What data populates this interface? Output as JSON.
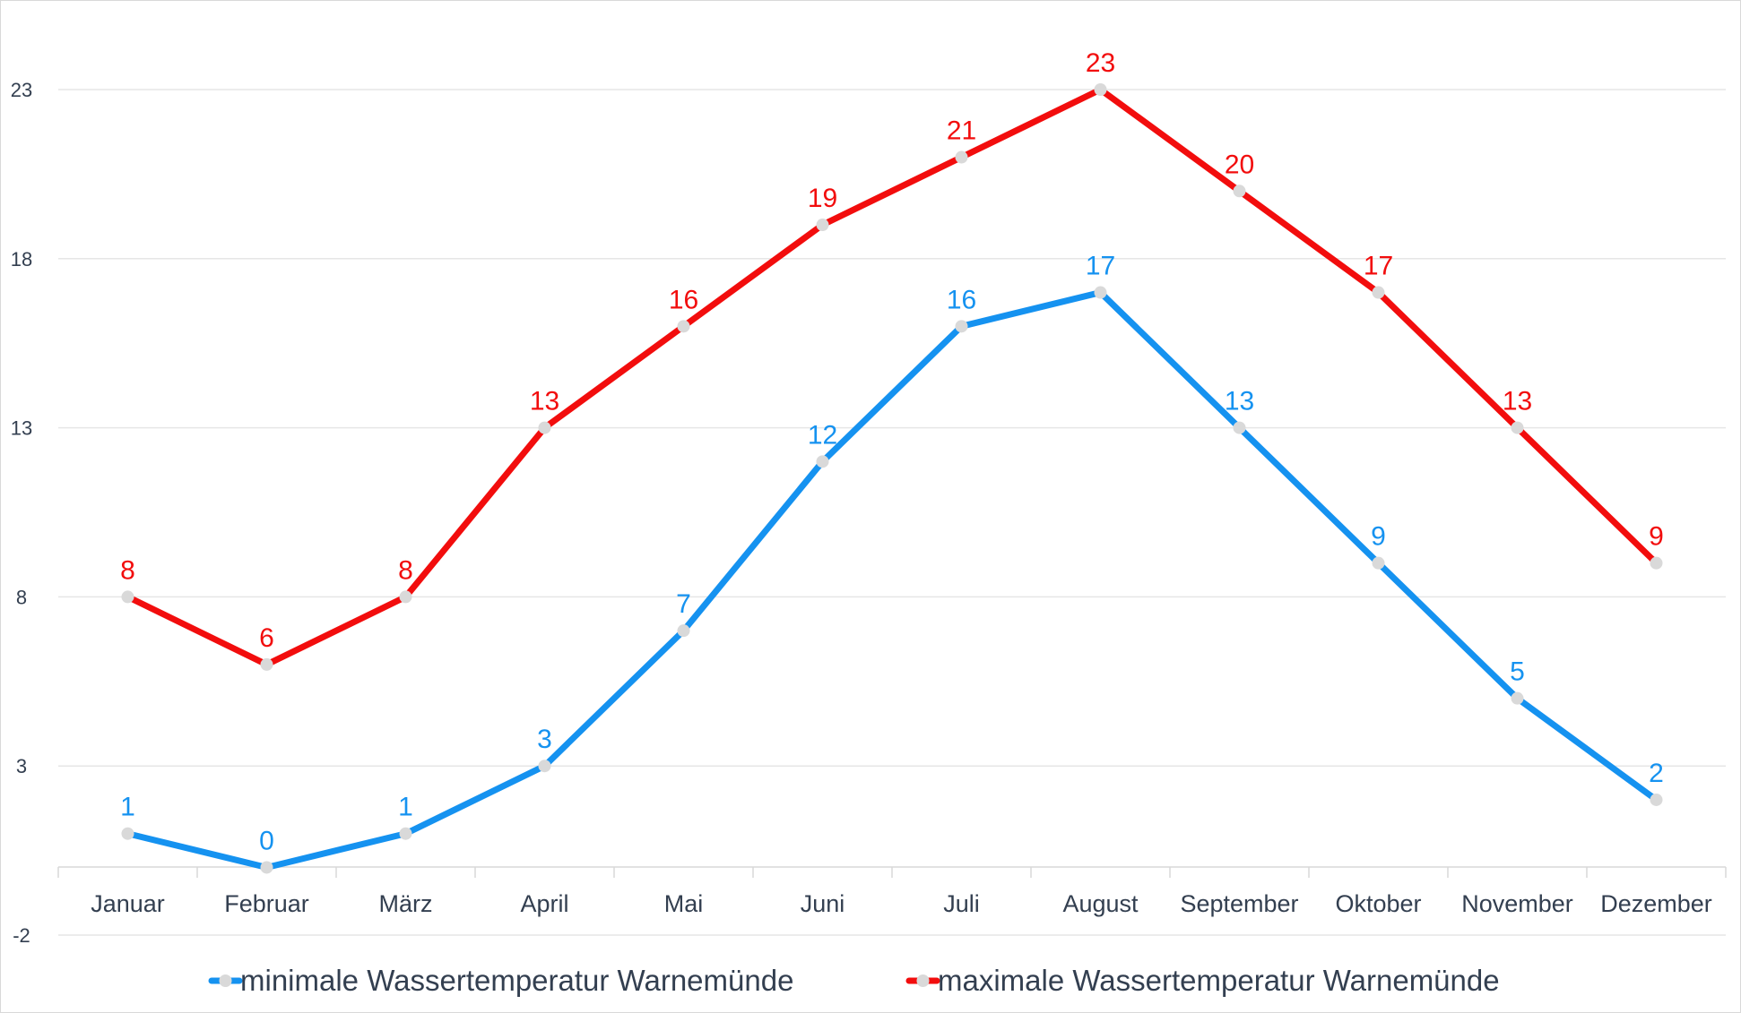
{
  "chart_data": {
    "type": "line",
    "categories": [
      "Januar",
      "Februar",
      "März",
      "April",
      "Mai",
      "Juni",
      "Juli",
      "August",
      "September",
      "Oktober",
      "November",
      "Dezember"
    ],
    "series": [
      {
        "name": "minimale Wassertemperatur Warnemünde",
        "color": "#1592f0",
        "values": [
          1,
          0,
          1,
          3,
          7,
          12,
          16,
          17,
          13,
          9,
          5,
          2
        ]
      },
      {
        "name": "maximale Wassertemperatur Warnemünde",
        "color": "#f20d0d",
        "values": [
          8,
          6,
          8,
          13,
          16,
          19,
          21,
          23,
          20,
          17,
          13,
          9
        ]
      }
    ],
    "yticks": [
      -2,
      3,
      8,
      13,
      18,
      23
    ],
    "ylim": [
      -2,
      25
    ],
    "grid": true,
    "legend": "bottom",
    "marker_color": "#d9d9d9",
    "grid_color": "#e6e6e6"
  }
}
